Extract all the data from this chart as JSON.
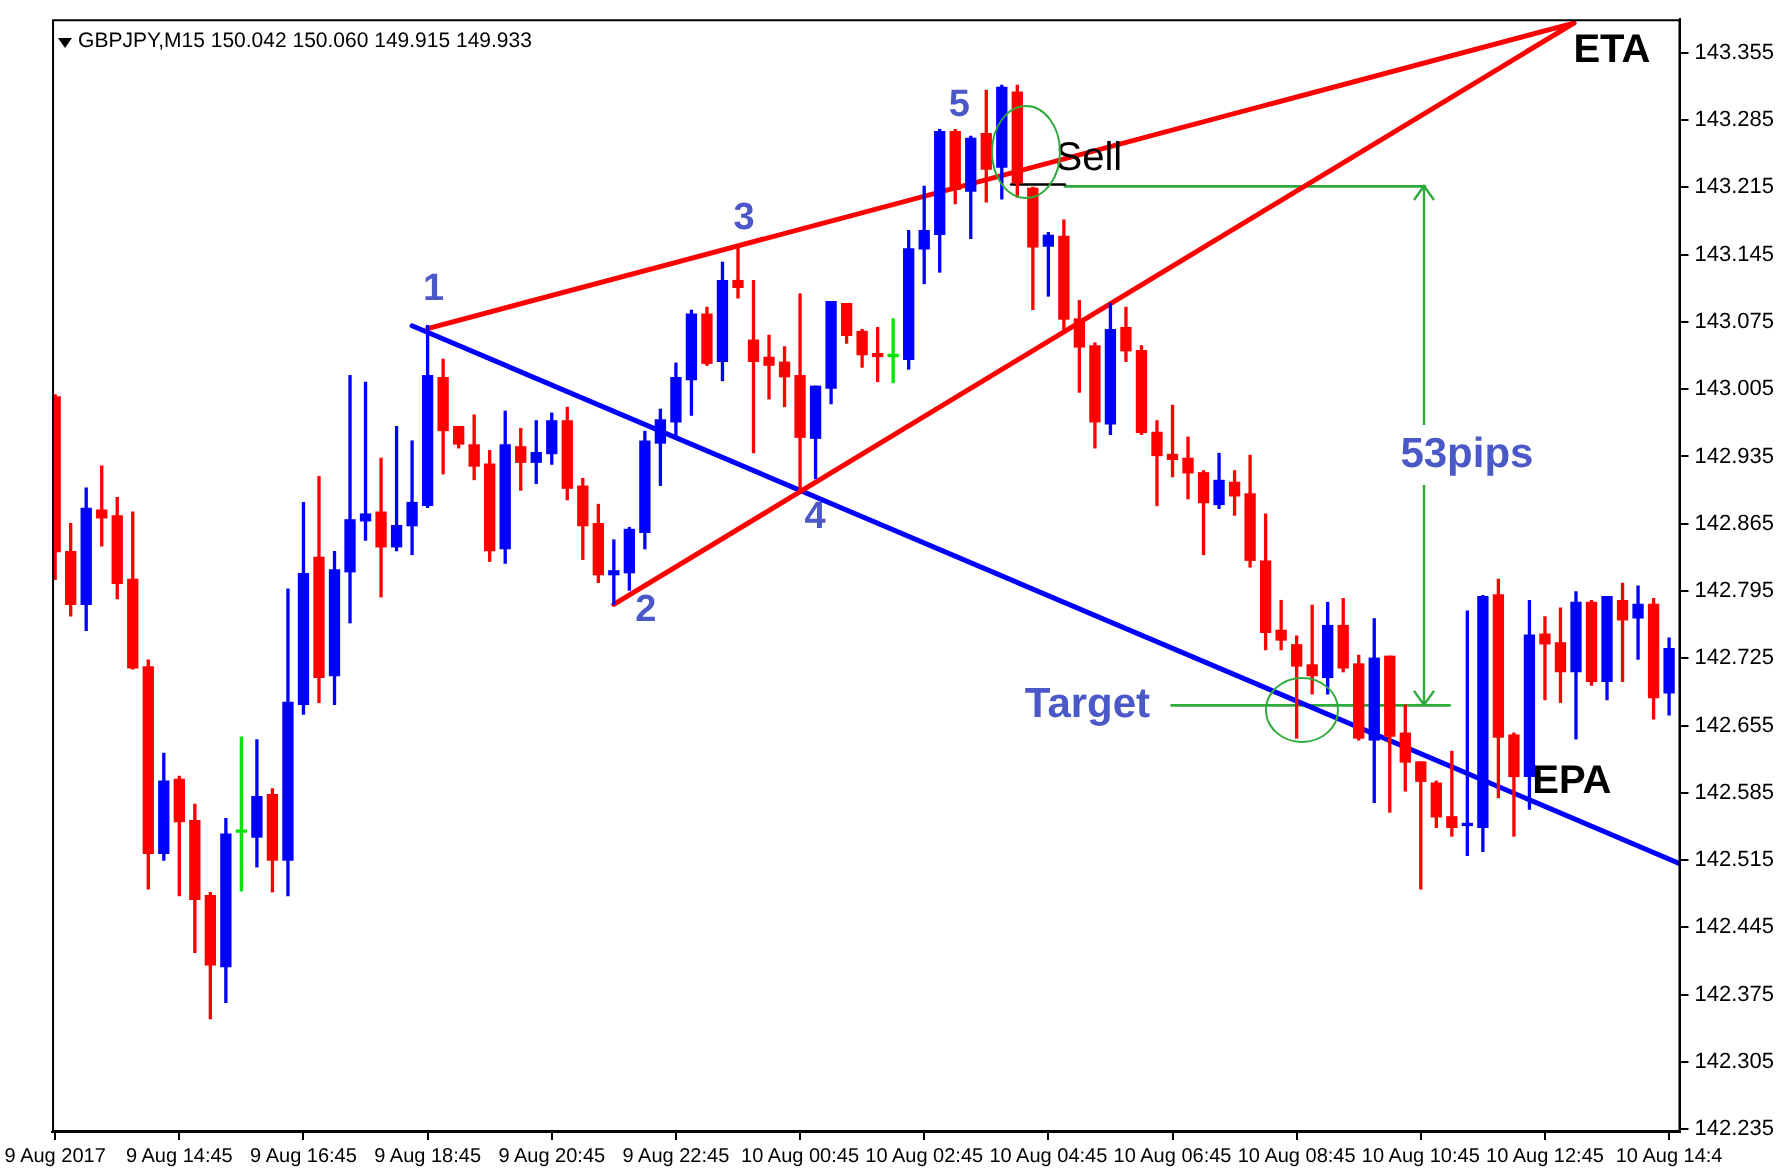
{
  "chart_data": {
    "type": "candlestick",
    "title": "GBPJPY,M15 150.042 150.060 149.915 149.933",
    "x": [
      "2017-08-09T12:45",
      "2017-08-09T13:00",
      "2017-08-09T13:15",
      "2017-08-09T13:30",
      "2017-08-09T13:45",
      "2017-08-09T14:00",
      "2017-08-09T14:15",
      "2017-08-09T14:30",
      "2017-08-09T14:45",
      "2017-08-09T15:00",
      "2017-08-09T15:15",
      "2017-08-09T15:30",
      "2017-08-09T15:45",
      "2017-08-09T16:00",
      "2017-08-09T16:15",
      "2017-08-09T16:30",
      "2017-08-09T16:45",
      "2017-08-09T17:00",
      "2017-08-09T17:15",
      "2017-08-09T17:30",
      "2017-08-09T17:45",
      "2017-08-09T18:00",
      "2017-08-09T18:15",
      "2017-08-09T18:30",
      "2017-08-09T18:45",
      "2017-08-09T19:00",
      "2017-08-09T19:15",
      "2017-08-09T19:30",
      "2017-08-09T19:45",
      "2017-08-09T20:00",
      "2017-08-09T20:15",
      "2017-08-09T20:30",
      "2017-08-09T20:45",
      "2017-08-09T21:00",
      "2017-08-09T21:15",
      "2017-08-09T21:30",
      "2017-08-09T21:45",
      "2017-08-09T22:00",
      "2017-08-09T22:15",
      "2017-08-09T22:30",
      "2017-08-09T22:45",
      "2017-08-09T23:00",
      "2017-08-09T23:15",
      "2017-08-09T23:30",
      "2017-08-09T23:45",
      "2017-08-10T00:00",
      "2017-08-10T00:15",
      "2017-08-10T00:30",
      "2017-08-10T00:45",
      "2017-08-10T01:00",
      "2017-08-10T01:15",
      "2017-08-10T01:30",
      "2017-08-10T01:45",
      "2017-08-10T02:00",
      "2017-08-10T02:15",
      "2017-08-10T02:30",
      "2017-08-10T02:45",
      "2017-08-10T03:00",
      "2017-08-10T03:15",
      "2017-08-10T03:30",
      "2017-08-10T03:45",
      "2017-08-10T04:00",
      "2017-08-10T04:15",
      "2017-08-10T04:30",
      "2017-08-10T04:45",
      "2017-08-10T05:00",
      "2017-08-10T05:15",
      "2017-08-10T05:30",
      "2017-08-10T05:45",
      "2017-08-10T06:00",
      "2017-08-10T06:15",
      "2017-08-10T06:30",
      "2017-08-10T06:45",
      "2017-08-10T07:00",
      "2017-08-10T07:15",
      "2017-08-10T07:30",
      "2017-08-10T07:45",
      "2017-08-10T08:00",
      "2017-08-10T08:15",
      "2017-08-10T08:30",
      "2017-08-10T08:45",
      "2017-08-10T09:00",
      "2017-08-10T09:15",
      "2017-08-10T09:30",
      "2017-08-10T09:45",
      "2017-08-10T10:00",
      "2017-08-10T10:15",
      "2017-08-10T10:30",
      "2017-08-10T10:45",
      "2017-08-10T11:00",
      "2017-08-10T11:15",
      "2017-08-10T11:30",
      "2017-08-10T11:45",
      "2017-08-10T12:00",
      "2017-08-10T12:15",
      "2017-08-10T12:30",
      "2017-08-10T12:45",
      "2017-08-10T13:00",
      "2017-08-10T13:15",
      "2017-08-10T13:30",
      "2017-08-10T13:45",
      "2017-08-10T14:00",
      "2017-08-10T14:15",
      "2017-08-10T14:30",
      "2017-08-10T14:45"
    ],
    "ohlc": [
      [
        142.997,
        142.999,
        142.807,
        142.836
      ],
      [
        142.836,
        142.865,
        142.769,
        142.781
      ],
      [
        142.781,
        142.902,
        142.754,
        142.881
      ],
      [
        142.879,
        142.925,
        142.842,
        142.871
      ],
      [
        142.873,
        142.892,
        142.787,
        142.803
      ],
      [
        142.807,
        142.877,
        142.714,
        142.715
      ],
      [
        142.716,
        142.723,
        142.485,
        142.522
      ],
      [
        142.522,
        142.626,
        142.515,
        142.597
      ],
      [
        142.599,
        142.602,
        142.478,
        142.555
      ],
      [
        142.556,
        142.573,
        142.419,
        142.474
      ],
      [
        142.478,
        142.481,
        142.35,
        142.406
      ],
      [
        142.404,
        142.558,
        142.367,
        142.542
      ],
      [
        142.544,
        142.643,
        142.483,
        142.544
      ],
      [
        142.539,
        142.64,
        142.508,
        142.581
      ],
      [
        142.583,
        142.589,
        142.482,
        142.515
      ],
      [
        142.515,
        142.797,
        142.478,
        142.679
      ],
      [
        142.677,
        142.887,
        142.667,
        142.813
      ],
      [
        142.83,
        142.914,
        142.679,
        142.705
      ],
      [
        142.707,
        142.836,
        142.677,
        142.817
      ],
      [
        142.815,
        143.019,
        142.762,
        142.869
      ],
      [
        142.868,
        143.012,
        142.848,
        142.875
      ],
      [
        142.877,
        142.933,
        142.789,
        142.841
      ],
      [
        142.841,
        142.966,
        142.837,
        142.863
      ],
      [
        142.863,
        142.951,
        142.833,
        142.887
      ],
      [
        142.884,
        143.071,
        142.882,
        143.019
      ],
      [
        143.017,
        143.036,
        142.917,
        142.962
      ],
      [
        142.966,
        142.966,
        142.944,
        142.948
      ],
      [
        142.947,
        142.978,
        142.911,
        142.925
      ],
      [
        142.927,
        142.941,
        142.826,
        142.837
      ],
      [
        142.839,
        142.982,
        142.824,
        142.947
      ],
      [
        142.945,
        142.964,
        142.9,
        142.929
      ],
      [
        142.929,
        142.972,
        142.907,
        142.939
      ],
      [
        142.938,
        142.98,
        142.927,
        142.972
      ],
      [
        142.972,
        142.986,
        142.89,
        142.902
      ],
      [
        142.904,
        142.912,
        142.828,
        142.863
      ],
      [
        142.865,
        142.885,
        142.804,
        142.812
      ],
      [
        142.812,
        142.848,
        142.781,
        142.816
      ],
      [
        142.814,
        142.861,
        142.796,
        142.859
      ],
      [
        142.856,
        142.961,
        142.839,
        142.951
      ],
      [
        142.949,
        142.984,
        142.905,
        142.973
      ],
      [
        142.971,
        143.032,
        142.954,
        143.017
      ],
      [
        143.015,
        143.087,
        142.978,
        143.083
      ],
      [
        143.083,
        143.09,
        143.03,
        143.032
      ],
      [
        143.034,
        143.137,
        143.014,
        143.118
      ],
      [
        143.118,
        143.155,
        143.1,
        143.111
      ],
      [
        143.056,
        143.118,
        142.939,
        143.034
      ],
      [
        143.038,
        143.061,
        142.995,
        143.03
      ],
      [
        143.033,
        143.049,
        142.987,
        143.018
      ],
      [
        143.019,
        143.104,
        142.9,
        142.955
      ],
      [
        142.954,
        143.008,
        142.912,
        143.008
      ],
      [
        143.006,
        143.096,
        142.99,
        143.096
      ],
      [
        143.094,
        143.094,
        143.053,
        143.061
      ],
      [
        143.065,
        143.067,
        143.028,
        143.041
      ],
      [
        143.042,
        143.069,
        143.013,
        143.039
      ],
      [
        143.039,
        143.078,
        143.012,
        143.039
      ],
      [
        143.036,
        143.17,
        143.026,
        143.151
      ],
      [
        143.151,
        143.216,
        143.115,
        143.17
      ],
      [
        143.166,
        143.275,
        143.127,
        143.273
      ],
      [
        143.273,
        143.275,
        143.198,
        143.213
      ],
      [
        143.211,
        143.268,
        143.162,
        143.266
      ],
      [
        143.271,
        143.316,
        143.2,
        143.234
      ],
      [
        143.236,
        143.321,
        143.203,
        143.319
      ],
      [
        143.314,
        143.321,
        143.205,
        143.22
      ],
      [
        143.214,
        143.215,
        143.088,
        143.153
      ],
      [
        143.154,
        143.168,
        143.102,
        143.165
      ],
      [
        143.164,
        143.181,
        143.063,
        143.078
      ],
      [
        143.078,
        143.097,
        143.002,
        143.049
      ],
      [
        143.05,
        143.053,
        142.944,
        142.971
      ],
      [
        142.969,
        143.094,
        142.958,
        143.067
      ],
      [
        143.069,
        143.09,
        143.034,
        143.045
      ],
      [
        143.045,
        143.05,
        142.958,
        142.96
      ],
      [
        142.96,
        142.972,
        142.884,
        142.936
      ],
      [
        142.937,
        142.988,
        142.914,
        142.932
      ],
      [
        142.933,
        142.955,
        142.891,
        142.918
      ],
      [
        142.918,
        142.92,
        142.833,
        142.887
      ],
      [
        142.885,
        142.938,
        142.881,
        142.91
      ],
      [
        142.908,
        142.92,
        142.874,
        142.894
      ],
      [
        142.896,
        142.936,
        142.82,
        142.827
      ],
      [
        142.826,
        142.875,
        142.734,
        142.752
      ],
      [
        142.754,
        142.785,
        142.734,
        142.744
      ],
      [
        142.739,
        142.748,
        142.642,
        142.717
      ],
      [
        142.718,
        142.78,
        142.688,
        142.707
      ],
      [
        142.705,
        142.783,
        142.688,
        142.759
      ],
      [
        142.759,
        142.787,
        142.711,
        142.715
      ],
      [
        142.719,
        142.728,
        142.64,
        142.642
      ],
      [
        142.64,
        142.766,
        142.575,
        142.725
      ],
      [
        142.727,
        142.727,
        142.565,
        142.644
      ],
      [
        142.647,
        142.676,
        142.587,
        142.617
      ],
      [
        142.617,
        142.617,
        142.485,
        142.597
      ],
      [
        142.595,
        142.597,
        142.549,
        142.56
      ],
      [
        142.56,
        142.628,
        142.54,
        142.549
      ],
      [
        142.551,
        142.774,
        142.52,
        142.553
      ],
      [
        142.549,
        142.79,
        142.524,
        142.789
      ],
      [
        142.791,
        142.807,
        142.58,
        142.643
      ],
      [
        142.645,
        142.647,
        142.54,
        142.602
      ],
      [
        142.602,
        142.785,
        142.568,
        142.749
      ],
      [
        142.75,
        142.768,
        142.682,
        142.74
      ],
      [
        142.741,
        142.777,
        142.679,
        142.711
      ],
      [
        142.711,
        142.794,
        142.641,
        142.783
      ],
      [
        142.783,
        142.785,
        142.697,
        142.701
      ],
      [
        142.701,
        142.789,
        142.682,
        142.789
      ],
      [
        142.785,
        142.803,
        142.701,
        142.765
      ],
      [
        142.767,
        142.8,
        142.724,
        142.781
      ],
      [
        142.781,
        142.787,
        142.662,
        142.684
      ],
      [
        142.689,
        142.746,
        142.666,
        142.735
      ]
    ],
    "colors": [
      "#ff0000",
      "#ff0000",
      "#0000ff",
      "#ff0000",
      "#ff0000",
      "#ff0000",
      "#ff0000",
      "#0000ff",
      "#ff0000",
      "#ff0000",
      "#ff0000",
      "#0000ff",
      "#00e600",
      "#0000ff",
      "#ff0000",
      "#0000ff",
      "#0000ff",
      "#ff0000",
      "#0000ff",
      "#0000ff",
      "#0000ff",
      "#ff0000",
      "#0000ff",
      "#0000ff",
      "#0000ff",
      "#ff0000",
      "#ff0000",
      "#ff0000",
      "#ff0000",
      "#0000ff",
      "#ff0000",
      "#0000ff",
      "#0000ff",
      "#ff0000",
      "#ff0000",
      "#ff0000",
      "#0000ff",
      "#0000ff",
      "#0000ff",
      "#0000ff",
      "#0000ff",
      "#0000ff",
      "#ff0000",
      "#0000ff",
      "#ff0000",
      "#ff0000",
      "#ff0000",
      "#ff0000",
      "#ff0000",
      "#0000ff",
      "#0000ff",
      "#ff0000",
      "#ff0000",
      "#ff0000",
      "#00e600",
      "#0000ff",
      "#0000ff",
      "#0000ff",
      "#ff0000",
      "#0000ff",
      "#ff0000",
      "#0000ff",
      "#ff0000",
      "#ff0000",
      "#0000ff",
      "#ff0000",
      "#ff0000",
      "#ff0000",
      "#0000ff",
      "#ff0000",
      "#ff0000",
      "#ff0000",
      "#ff0000",
      "#ff0000",
      "#ff0000",
      "#0000ff",
      "#ff0000",
      "#ff0000",
      "#ff0000",
      "#ff0000",
      "#ff0000",
      "#ff0000",
      "#0000ff",
      "#ff0000",
      "#ff0000",
      "#0000ff",
      "#ff0000",
      "#ff0000",
      "#ff0000",
      "#ff0000",
      "#ff0000",
      "#0000ff",
      "#0000ff",
      "#ff0000",
      "#ff0000",
      "#0000ff",
      "#ff0000",
      "#ff0000",
      "#0000ff",
      "#ff0000",
      "#0000ff",
      "#ff0000",
      "#0000ff",
      "#ff0000",
      "#0000ff"
    ],
    "series": [
      {
        "type": "line",
        "color": "#ff0000",
        "x": [
          "2017-08-09T18:45",
          "2017-08-10T13:13"
        ],
        "values": [
          143.068,
          143.386
        ]
      },
      {
        "type": "line",
        "color": "#ff0000",
        "x": [
          "2017-08-09T21:45",
          "2017-08-10T13:13"
        ],
        "values": [
          142.781,
          143.386
        ]
      },
      {
        "type": "line",
        "color": "#0000ff",
        "x": [
          "2017-08-09T18:30",
          "2017-08-10T14:56"
        ],
        "values": [
          143.071,
          142.511
        ]
      },
      {
        "type": "line",
        "color": "#000000",
        "x": [
          "2017-08-10T04:09",
          "2017-08-10T05:01"
        ],
        "values": [
          143.218,
          143.218
        ]
      },
      {
        "type": "line",
        "color": "#2eaa3c",
        "x": [
          "2017-08-10T05:01",
          "2017-08-10T10:49"
        ],
        "values": [
          143.216,
          143.216
        ]
      },
      {
        "type": "line",
        "color": "#2eaa3c",
        "x": [
          "2017-08-10T06:44",
          "2017-08-10T11:13"
        ],
        "values": [
          142.676,
          142.676
        ]
      }
    ],
    "xlim": [
      "2017-08-09T12:42",
      "2017-08-10T14:56"
    ],
    "xticks": [
      {
        "value": "2017-08-09T12:45",
        "label": "9 Aug 2017"
      },
      {
        "value": "2017-08-09T14:45",
        "label": "9 Aug 14:45"
      },
      {
        "value": "2017-08-09T16:45",
        "label": "9 Aug 16:45"
      },
      {
        "value": "2017-08-09T18:45",
        "label": "9 Aug 18:45"
      },
      {
        "value": "2017-08-09T20:45",
        "label": "9 Aug 20:45"
      },
      {
        "value": "2017-08-09T22:45",
        "label": "9 Aug 22:45"
      },
      {
        "value": "2017-08-10T00:45",
        "label": "10 Aug 00:45"
      },
      {
        "value": "2017-08-10T02:45",
        "label": "10 Aug 02:45"
      },
      {
        "value": "2017-08-10T04:45",
        "label": "10 Aug 04:45"
      },
      {
        "value": "2017-08-10T06:45",
        "label": "10 Aug 06:45"
      },
      {
        "value": "2017-08-10T08:45",
        "label": "10 Aug 08:45"
      },
      {
        "value": "2017-08-10T10:45",
        "label": "10 Aug 10:45"
      },
      {
        "value": "2017-08-10T12:45",
        "label": "10 Aug 12:45"
      },
      {
        "value": "2017-08-10T14:45",
        "label": "10 Aug 14:4"
      }
    ],
    "ylim": [
      142.232,
      143.39
    ],
    "yticks": [
      142.235,
      142.305,
      142.375,
      142.445,
      142.515,
      142.585,
      142.655,
      142.725,
      142.795,
      142.865,
      142.935,
      143.005,
      143.075,
      143.145,
      143.215,
      143.285,
      143.355
    ],
    "annotations": [
      {
        "text": "1",
        "x": "2017-08-09T18:45",
        "y": 143.071
      },
      {
        "text": "2",
        "x": "2017-08-09T21:45",
        "y": 142.781
      },
      {
        "text": "3",
        "x": "2017-08-09T23:45",
        "y": 143.155
      },
      {
        "text": "4",
        "x": "2017-08-10T00:46",
        "y": 142.899
      },
      {
        "text": "5",
        "x": "2017-08-10T03:15",
        "y": 143.275
      },
      {
        "text": "Sell",
        "x": "2017-08-10T05:01",
        "y": 143.218
      },
      {
        "text": "ETA",
        "x": "2017-08-10T13:13",
        "y": 143.386
      },
      {
        "text": "53pips",
        "x": "2017-08-10T10:49",
        "y": 142.676
      },
      {
        "text": "Target",
        "x": "2017-08-10T06:44",
        "y": 142.676
      },
      {
        "text": "EPA",
        "x": "2017-08-10T13:11",
        "y": 142.559
      }
    ]
  }
}
